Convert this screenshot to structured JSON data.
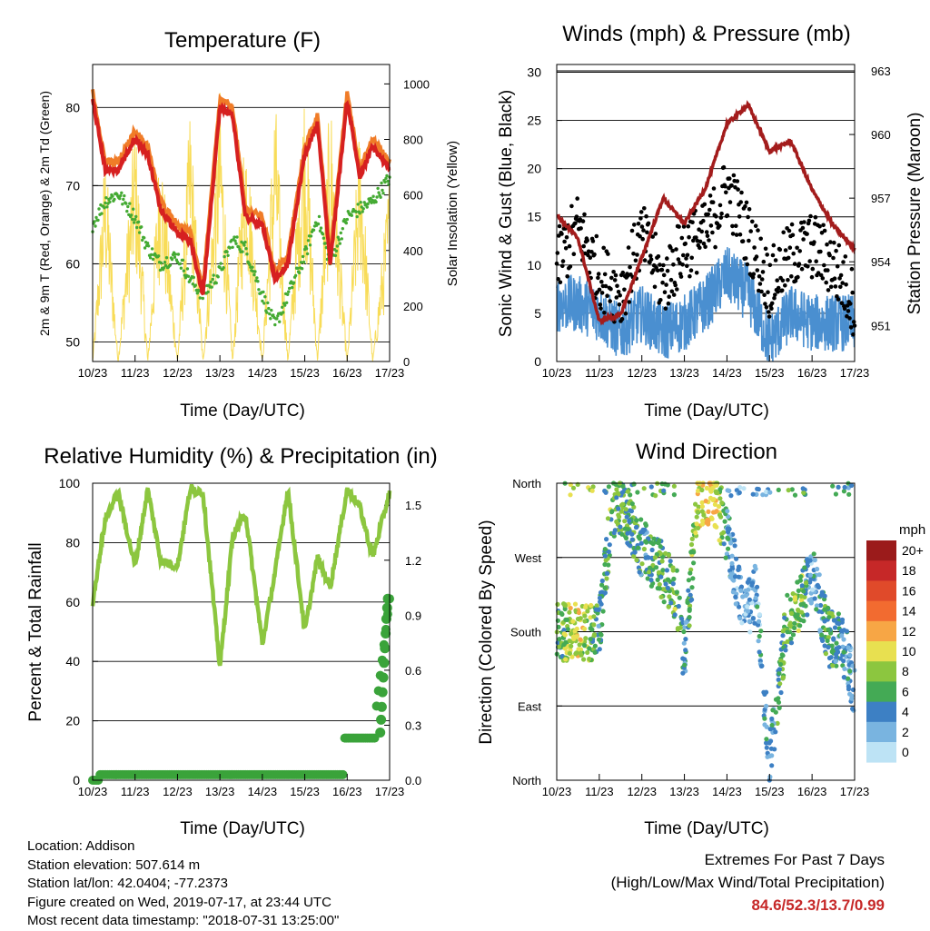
{
  "temperature": {
    "title": "Temperature (F)",
    "ylabel_left": "2m & 9m T (Red, Orange) & 2m Td (Green)",
    "ylabel_right": "Solar Insolation (Yellow)",
    "xlabel": "Time (Day/UTC)",
    "left_ticks": [
      "50",
      "60",
      "70",
      "80"
    ],
    "right_ticks": [
      "0",
      "200",
      "400",
      "600",
      "800",
      "1000"
    ],
    "x_ticks": [
      "10/23",
      "11/23",
      "12/23",
      "13/23",
      "14/23",
      "15/23",
      "16/23",
      "17/23"
    ],
    "colors": {
      "t2m": "#d62020",
      "t9m": "#f07c28",
      "td": "#44aa33",
      "solar": "#f8dc58"
    }
  },
  "winds": {
    "title": "Winds (mph) & Pressure (mb)",
    "ylabel_left": "Sonic Wind & Gust (Blue, Black)",
    "ylabel_right": "Station Pressure (Maroon)",
    "xlabel": "Time (Day/UTC)",
    "left_ticks": [
      "0",
      "5",
      "10",
      "15",
      "20",
      "25",
      "30"
    ],
    "right_ticks": [
      "951",
      "954",
      "957",
      "960",
      "963"
    ],
    "x_ticks": [
      "10/23",
      "11/23",
      "12/23",
      "13/23",
      "14/23",
      "15/23",
      "16/23",
      "17/23"
    ],
    "colors": {
      "wind": "#4a8fd0",
      "gust": "#000000",
      "pressure": "#a31c1c"
    }
  },
  "humidity": {
    "title": "Relative Humidity (%) & Precipitation (in)",
    "ylabel_left": "Percent & Total Rainfall",
    "xlabel": "Time (Day/UTC)",
    "left_ticks": [
      "0",
      "20",
      "40",
      "60",
      "80",
      "100"
    ],
    "right_ticks": [
      "0.0",
      "0.3",
      "0.6",
      "0.9",
      "1.2",
      "1.5"
    ],
    "x_ticks": [
      "10/23",
      "11/23",
      "12/23",
      "13/23",
      "14/23",
      "15/23",
      "16/23",
      "17/23"
    ],
    "colors": {
      "rh": "#8cc63f",
      "precip": "#3aa33a"
    }
  },
  "direction": {
    "title": "Wind Direction",
    "ylabel_left": "Direction (Colored By Speed)",
    "xlabel": "Time (Day/UTC)",
    "y_ticks": [
      "North",
      "East",
      "South",
      "West",
      "North"
    ],
    "x_ticks": [
      "10/23",
      "11/23",
      "12/23",
      "13/23",
      "14/23",
      "15/23",
      "16/23",
      "17/23"
    ],
    "legend_title": "mph",
    "legend_labels": [
      "20+",
      "18",
      "16",
      "14",
      "12",
      "10",
      "8",
      "6",
      "4",
      "2",
      "0"
    ],
    "legend_colors": [
      "#9b1b1b",
      "#c62828",
      "#e04a2a",
      "#f26b30",
      "#f7a645",
      "#e8e050",
      "#8cc63f",
      "#44aa55",
      "#3d80c4",
      "#79b4e0",
      "#bde3f5"
    ]
  },
  "chart_data": [
    {
      "type": "line",
      "title": "Temperature (F)",
      "xlabel": "Time (Day/UTC)",
      "ylabel": "2m & 9m T (Red, Orange) & 2m Td (Green)",
      "ylim": [
        47.5,
        85.5
      ],
      "y2label": "Solar Insolation (Yellow)",
      "y2lim": [
        0,
        1070
      ],
      "x": [
        10.0,
        10.3,
        10.6,
        11.0,
        11.3,
        11.6,
        12.0,
        12.3,
        12.6,
        13.0,
        13.3,
        13.6,
        14.0,
        14.3,
        14.6,
        15.0,
        15.3,
        15.6,
        16.0,
        16.3,
        16.6,
        17.0
      ],
      "series": [
        {
          "name": "2m T",
          "values": [
            81,
            72,
            72,
            76,
            74,
            67,
            64,
            63,
            56,
            80,
            79,
            66,
            65,
            58,
            60,
            74,
            78,
            60,
            81,
            71,
            75,
            72
          ]
        },
        {
          "name": "2m Td",
          "values": [
            65,
            68,
            69,
            66,
            62,
            60,
            61,
            58,
            56,
            59,
            63,
            62,
            56,
            52,
            56,
            61,
            66,
            60,
            66,
            67,
            68,
            71
          ]
        },
        {
          "name": "Solar Insolation",
          "axis": "right",
          "values": [
            0,
            800,
            0,
            900,
            0,
            850,
            0,
            950,
            0,
            1000,
            0,
            950,
            0,
            1000,
            0,
            1050,
            0,
            1000,
            0,
            900,
            0,
            700
          ]
        }
      ]
    },
    {
      "type": "line",
      "title": "Winds (mph) & Pressure (mb)",
      "xlabel": "Time (Day/UTC)",
      "ylabel": "Sonic Wind & Gust (Blue, Black)",
      "ylim": [
        0,
        30.8
      ],
      "y2label": "Station Pressure (Maroon)",
      "y2lim": [
        949.3,
        963.3
      ],
      "x": [
        10.0,
        10.5,
        11.0,
        11.5,
        12.0,
        12.5,
        13.0,
        13.5,
        14.0,
        14.5,
        15.0,
        15.5,
        16.0,
        16.5,
        17.0
      ],
      "series": [
        {
          "name": "Sonic Wind",
          "values": [
            6,
            6,
            5,
            3,
            5,
            3,
            4,
            6,
            9,
            7,
            2,
            5,
            4,
            4,
            4
          ]
        },
        {
          "name": "Gust",
          "values": [
            10,
            14,
            9,
            7,
            13,
            8,
            12,
            13,
            18,
            13,
            8,
            11,
            12,
            10,
            6
          ]
        },
        {
          "name": "Station Pressure",
          "axis": "right",
          "values": [
            956.2,
            955.1,
            951.2,
            951.5,
            954.2,
            957.0,
            955.8,
            957.5,
            960.5,
            961.4,
            959.2,
            959.7,
            957.4,
            955.7,
            954.6
          ]
        }
      ]
    },
    {
      "type": "line",
      "title": "Relative Humidity (%) & Precipitation (in)",
      "xlabel": "Time (Day/UTC)",
      "ylabel": "Percent & Total Rainfall",
      "ylim": [
        0,
        100
      ],
      "y2lim": [
        0,
        1.62
      ],
      "x": [
        10.0,
        10.3,
        10.6,
        11.0,
        11.3,
        11.6,
        12.0,
        12.3,
        12.6,
        13.0,
        13.3,
        13.6,
        14.0,
        14.3,
        14.6,
        15.0,
        15.3,
        15.6,
        16.0,
        16.3,
        16.6,
        17.0
      ],
      "series": [
        {
          "name": "Relative Humidity",
          "values": [
            60,
            88,
            97,
            72,
            98,
            74,
            72,
            98,
            97,
            38,
            82,
            90,
            46,
            70,
            98,
            50,
            75,
            65,
            98,
            92,
            75,
            97
          ]
        },
        {
          "name": "Total Rainfall",
          "axis": "right",
          "values": [
            0,
            0.03,
            0.03,
            0.03,
            0.03,
            0.03,
            0.03,
            0.03,
            0.03,
            0.03,
            0.03,
            0.03,
            0.03,
            0.03,
            0.03,
            0.03,
            0.03,
            0.03,
            0.23,
            0.23,
            0.23,
            0.99
          ]
        }
      ]
    },
    {
      "type": "scatter",
      "title": "Wind Direction",
      "xlabel": "Time (Day/UTC)",
      "ylabel": "Direction (Colored By Speed)",
      "ylim": [
        0,
        360
      ],
      "x": [
        10.0,
        10.5,
        11.0,
        11.3,
        11.6,
        12.0,
        12.4,
        12.8,
        13.0,
        13.3,
        13.7,
        14.0,
        14.4,
        14.7,
        15.0,
        15.4,
        15.7,
        16.0,
        16.4,
        16.7,
        17.0
      ],
      "series": [
        {
          "name": "Direction",
          "values": [
            180,
            180,
            180,
            330,
            330,
            280,
            260,
            230,
            150,
            330,
            340,
            300,
            200,
            230,
            20,
            190,
            210,
            250,
            170,
            170,
            110
          ]
        },
        {
          "name": "Speed",
          "values": [
            6,
            10,
            5,
            7,
            6,
            5,
            6,
            7,
            4,
            9,
            11,
            4,
            2,
            3,
            3,
            7,
            8,
            3,
            6,
            4,
            3
          ]
        }
      ]
    }
  ],
  "info": {
    "location": "Location: Addison",
    "elevation": "Station elevation: 507.614 m",
    "latlon": "Station lat/lon: 42.0404; -77.2373",
    "created": "Figure created on Wed, 2019-07-17, at 23:44 UTC",
    "recent": "Most recent data timestamp: \"2018-07-31 13:25:00\""
  },
  "extremes": {
    "title": "Extremes For Past 7 Days",
    "subtitle": "(High/Low/Max Wind/Total Precipitation)",
    "values": "84.6/52.3/13.7/0.99"
  }
}
